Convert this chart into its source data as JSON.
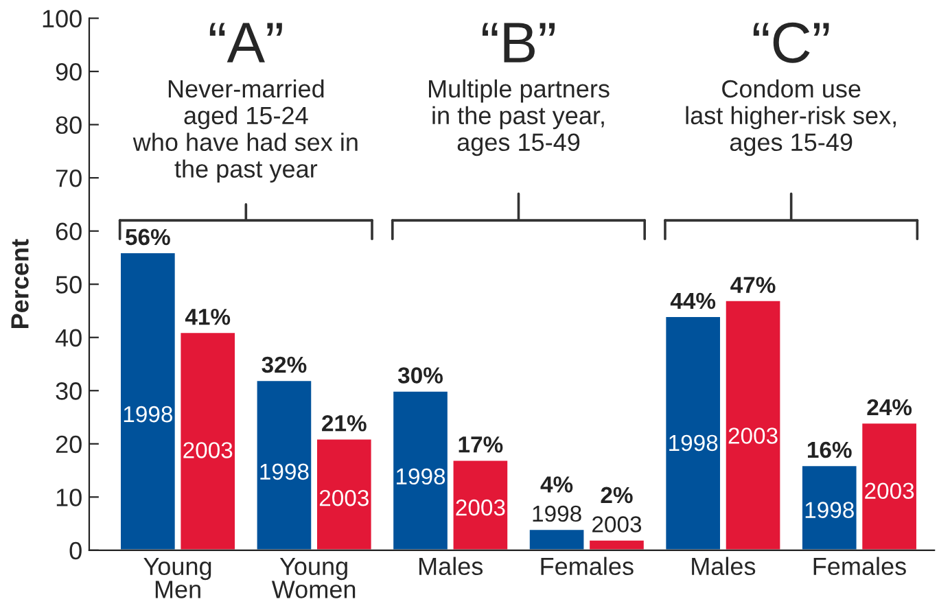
{
  "chart_data": {
    "type": "bar",
    "ylabel": "Percent",
    "categories": [
      "Young\nMen",
      "Young\nWomen",
      "Males",
      "Females",
      "Males",
      "Females"
    ],
    "series": [
      {
        "name": "1998",
        "color": "#00529b",
        "values": [
          56,
          32,
          30,
          4,
          44,
          16
        ],
        "value_labels": [
          "56%",
          "32%",
          "30%",
          "4%",
          "44%",
          "16%"
        ]
      },
      {
        "name": "2003",
        "color": "#e31837",
        "values": [
          41,
          21,
          17,
          2,
          47,
          24
        ],
        "value_labels": [
          "41%",
          "21%",
          "17%",
          "2%",
          "47%",
          "24%"
        ]
      }
    ],
    "ylim": [
      0,
      100
    ],
    "yticks": [
      0,
      10,
      20,
      30,
      40,
      50,
      60,
      70,
      80,
      90,
      100
    ],
    "annotations": [
      "“A”",
      "Never-married\naged 15-24\nwho have had sex in\nthe past year",
      "“B”",
      "Multiple partners\nin the past year,\nages 15-49",
      "“C”",
      "Condom use\nlast higher-risk sex,\nages 15-49"
    ],
    "grid": false,
    "legend": false
  }
}
